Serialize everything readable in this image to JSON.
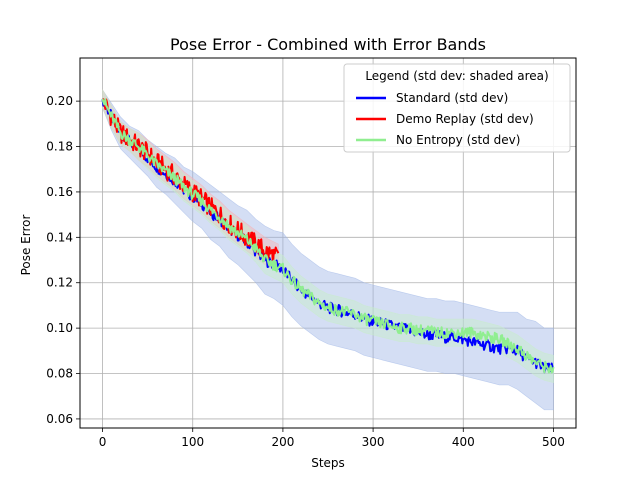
{
  "chart_data": {
    "type": "line",
    "title": "Pose Error - Combined with Error Bands",
    "xlabel": "Steps",
    "ylabel": "Pose Error",
    "xlim": [
      -25,
      525
    ],
    "ylim": [
      0.056,
      0.219
    ],
    "grid": true,
    "xticks": [
      0,
      100,
      200,
      300,
      400,
      500
    ],
    "xtick_labels": [
      "0",
      "100",
      "200",
      "300",
      "400",
      "500"
    ],
    "yticks": [
      0.06,
      0.08,
      0.1,
      0.12,
      0.14,
      0.16,
      0.18,
      0.2
    ],
    "ytick_labels": [
      "0.06",
      "0.08",
      "0.10",
      "0.12",
      "0.14",
      "0.16",
      "0.18",
      "0.20"
    ],
    "legend": {
      "title": "Legend (std dev: shaded area)",
      "placement": "top-right"
    },
    "series": [
      {
        "name": "Standard (std dev)",
        "color": "#0000ff",
        "band_color": "#9fb6e6",
        "x": [
          0,
          10,
          20,
          30,
          40,
          50,
          60,
          70,
          80,
          90,
          100,
          110,
          120,
          130,
          140,
          150,
          160,
          170,
          180,
          190,
          200,
          210,
          220,
          230,
          240,
          250,
          260,
          270,
          280,
          290,
          300,
          310,
          320,
          330,
          340,
          350,
          360,
          370,
          380,
          390,
          400,
          410,
          420,
          430,
          440,
          450,
          460,
          470,
          480,
          490,
          500
        ],
        "values": [
          0.201,
          0.193,
          0.186,
          0.182,
          0.179,
          0.175,
          0.171,
          0.168,
          0.165,
          0.161,
          0.158,
          0.155,
          0.151,
          0.148,
          0.144,
          0.141,
          0.138,
          0.134,
          0.13,
          0.128,
          0.126,
          0.121,
          0.117,
          0.114,
          0.111,
          0.109,
          0.108,
          0.107,
          0.106,
          0.104,
          0.103,
          0.102,
          0.101,
          0.1,
          0.099,
          0.098,
          0.097,
          0.097,
          0.096,
          0.096,
          0.095,
          0.094,
          0.093,
          0.092,
          0.091,
          0.091,
          0.09,
          0.087,
          0.085,
          0.082,
          0.082
        ],
        "std": [
          0.004,
          0.006,
          0.007,
          0.007,
          0.008,
          0.008,
          0.009,
          0.009,
          0.01,
          0.01,
          0.011,
          0.011,
          0.012,
          0.012,
          0.013,
          0.013,
          0.014,
          0.014,
          0.015,
          0.015,
          0.016,
          0.016,
          0.016,
          0.016,
          0.016,
          0.016,
          0.016,
          0.016,
          0.016,
          0.016,
          0.016,
          0.016,
          0.016,
          0.016,
          0.016,
          0.016,
          0.016,
          0.016,
          0.016,
          0.016,
          0.016,
          0.016,
          0.016,
          0.016,
          0.016,
          0.016,
          0.017,
          0.017,
          0.018,
          0.018,
          0.018
        ]
      },
      {
        "name": "Demo Replay (std dev)",
        "color": "#ff0000",
        "band_color": "#f6b3b3",
        "x": [
          0,
          10,
          20,
          30,
          40,
          50,
          60,
          70,
          80,
          90,
          100,
          110,
          120,
          130,
          140,
          150,
          160,
          170,
          180,
          190,
          195
        ],
        "values": [
          0.201,
          0.193,
          0.186,
          0.183,
          0.18,
          0.177,
          0.173,
          0.17,
          0.167,
          0.163,
          0.16,
          0.157,
          0.153,
          0.15,
          0.146,
          0.143,
          0.14,
          0.137,
          0.134,
          0.132,
          0.131
        ],
        "std": [
          0.004,
          0.005,
          0.005,
          0.005,
          0.006,
          0.006,
          0.006,
          0.006,
          0.006,
          0.006,
          0.006,
          0.006,
          0.006,
          0.006,
          0.006,
          0.006,
          0.006,
          0.006,
          0.006,
          0.006,
          0.006
        ]
      },
      {
        "name": "No Entropy (std dev)",
        "color": "#90ee90",
        "band_color": "#c8eec8",
        "x": [
          0,
          10,
          20,
          30,
          40,
          50,
          60,
          70,
          80,
          90,
          100,
          110,
          120,
          130,
          140,
          150,
          160,
          170,
          180,
          190,
          200,
          210,
          220,
          230,
          240,
          250,
          260,
          270,
          280,
          290,
          300,
          310,
          320,
          330,
          340,
          350,
          360,
          370,
          380,
          390,
          400,
          410,
          420,
          430,
          440,
          450,
          460,
          470,
          480,
          490,
          500
        ],
        "values": [
          0.201,
          0.193,
          0.186,
          0.183,
          0.18,
          0.176,
          0.172,
          0.169,
          0.166,
          0.162,
          0.159,
          0.156,
          0.152,
          0.149,
          0.145,
          0.142,
          0.139,
          0.135,
          0.13,
          0.128,
          0.126,
          0.121,
          0.117,
          0.114,
          0.111,
          0.109,
          0.108,
          0.107,
          0.106,
          0.104,
          0.103,
          0.102,
          0.101,
          0.1,
          0.1,
          0.099,
          0.099,
          0.098,
          0.098,
          0.098,
          0.098,
          0.098,
          0.097,
          0.096,
          0.095,
          0.093,
          0.091,
          0.088,
          0.085,
          0.083,
          0.082
        ],
        "std": [
          0.004,
          0.005,
          0.005,
          0.005,
          0.006,
          0.006,
          0.006,
          0.006,
          0.006,
          0.006,
          0.006,
          0.006,
          0.006,
          0.006,
          0.006,
          0.006,
          0.006,
          0.006,
          0.006,
          0.006,
          0.006,
          0.006,
          0.006,
          0.006,
          0.006,
          0.006,
          0.006,
          0.006,
          0.006,
          0.006,
          0.006,
          0.006,
          0.006,
          0.006,
          0.006,
          0.006,
          0.006,
          0.006,
          0.006,
          0.006,
          0.006,
          0.006,
          0.006,
          0.006,
          0.006,
          0.006,
          0.006,
          0.006,
          0.006,
          0.006,
          0.006
        ]
      }
    ]
  }
}
